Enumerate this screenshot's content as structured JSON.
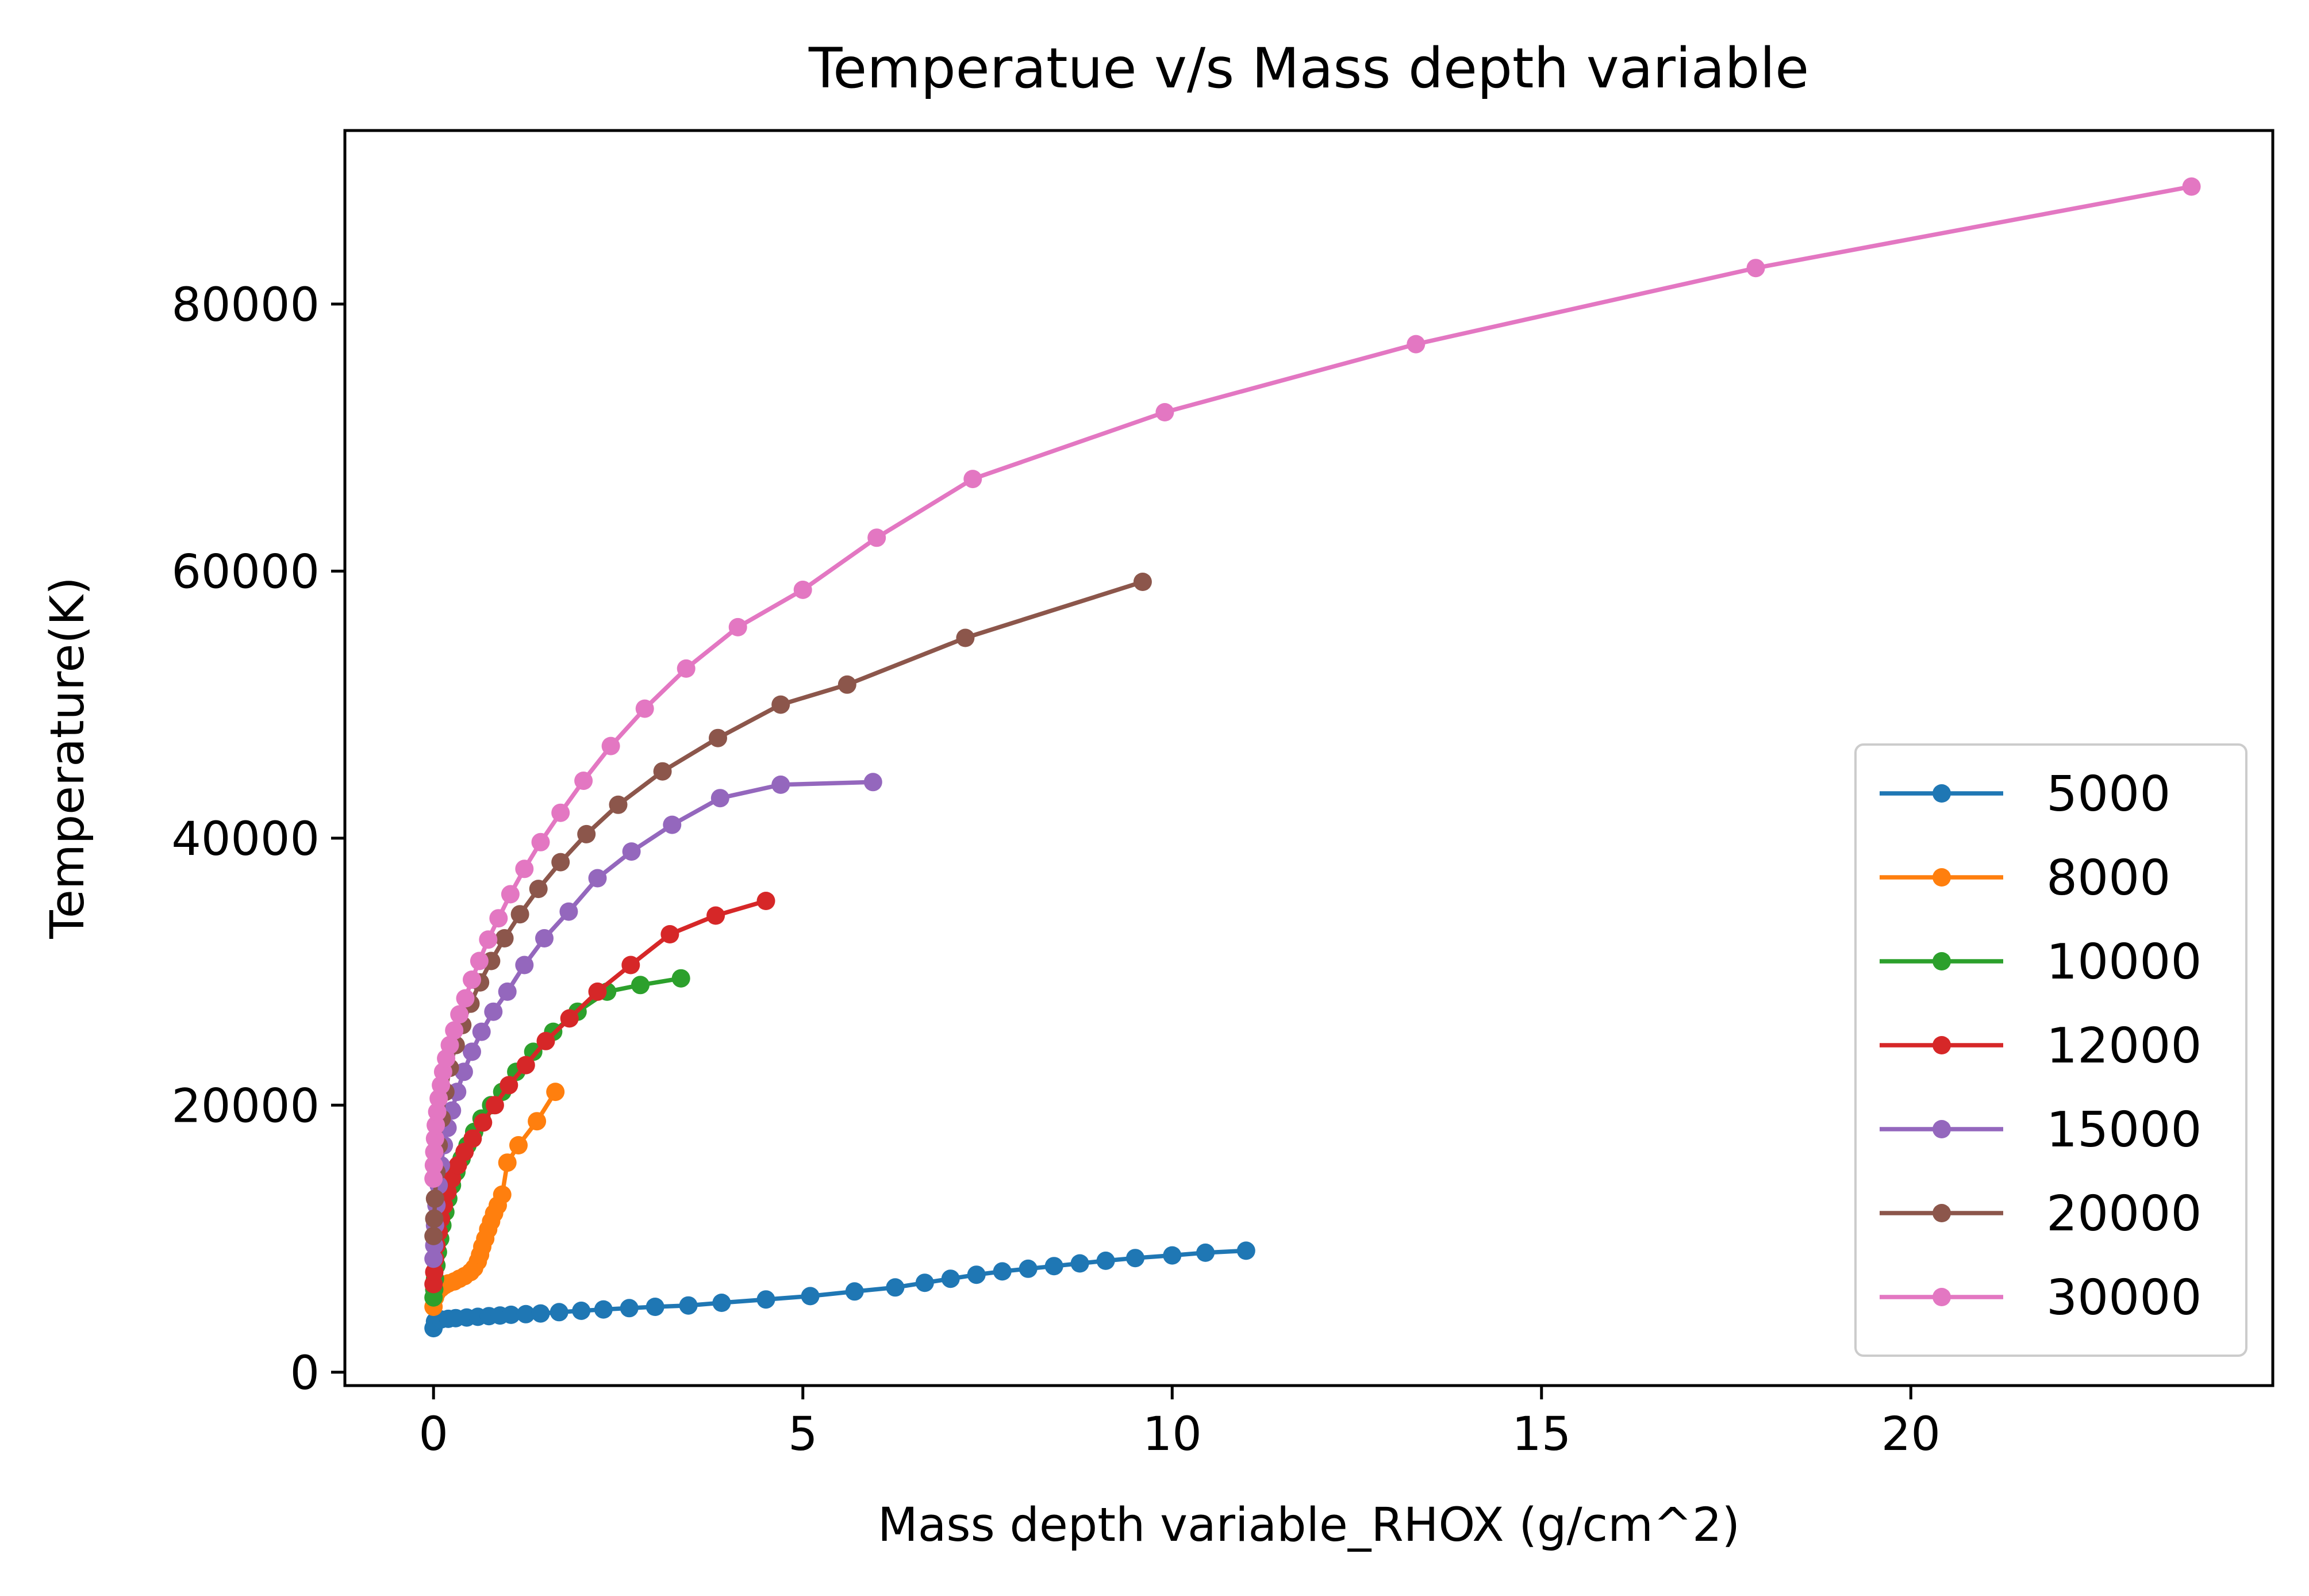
{
  "chart_data": {
    "type": "line",
    "title": "Temperatue v/s Mass depth variable",
    "xlabel": "Mass depth variable_RHOX (g/cm^2)",
    "ylabel": "Temperature(K)",
    "xlim": [
      -1.2,
      24.9
    ],
    "ylim": [
      -1000,
      93000
    ],
    "xticks": [
      0,
      5,
      10,
      15,
      20
    ],
    "yticks": [
      0,
      20000,
      40000,
      60000,
      80000
    ],
    "grid": false,
    "legend_position": "lower right",
    "series": [
      {
        "name": "5000",
        "color": "#1f77b4",
        "x": [
          0,
          0.02,
          0.05,
          0.1,
          0.2,
          0.3,
          0.45,
          0.6,
          0.75,
          0.9,
          1.05,
          1.25,
          1.45,
          1.7,
          2.0,
          2.3,
          2.65,
          3.0,
          3.45,
          3.9,
          4.5,
          5.1,
          5.7,
          6.25,
          6.65,
          7.0,
          7.35,
          7.7,
          8.05,
          8.4,
          8.75,
          9.1,
          9.5,
          10.0,
          10.45,
          11.0
        ],
        "y": [
          3300,
          3800,
          3900,
          3950,
          4000,
          4050,
          4100,
          4150,
          4200,
          4250,
          4300,
          4350,
          4400,
          4500,
          4600,
          4700,
          4800,
          4900,
          5000,
          5200,
          5450,
          5700,
          6050,
          6350,
          6700,
          7000,
          7300,
          7550,
          7750,
          7950,
          8150,
          8350,
          8550,
          8750,
          8950,
          9100
        ]
      },
      {
        "name": "8000",
        "color": "#ff7f0e",
        "x": [
          0,
          0.02,
          0.05,
          0.1,
          0.15,
          0.2,
          0.28,
          0.35,
          0.42,
          0.5,
          0.55,
          0.6,
          0.63,
          0.66,
          0.7,
          0.74,
          0.78,
          0.82,
          0.87,
          0.93,
          1.0,
          1.15,
          1.4,
          1.65
        ],
        "y": [
          4900,
          5600,
          6000,
          6300,
          6500,
          6650,
          6800,
          7000,
          7200,
          7500,
          7800,
          8300,
          8800,
          9400,
          10000,
          10700,
          11300,
          11900,
          12500,
          13300,
          15700,
          17000,
          18800,
          21000
        ]
      },
      {
        "name": "10000",
        "color": "#2ca02c",
        "x": [
          0,
          0.01,
          0.02,
          0.04,
          0.06,
          0.09,
          0.12,
          0.16,
          0.2,
          0.25,
          0.31,
          0.38,
          0.46,
          0.55,
          0.65,
          0.78,
          0.93,
          1.12,
          1.35,
          1.62,
          1.95,
          2.35,
          2.8,
          3.35
        ],
        "y": [
          5600,
          6200,
          7000,
          8000,
          9000,
          10000,
          11000,
          12000,
          13000,
          14000,
          15000,
          16000,
          17000,
          18000,
          19000,
          20000,
          21000,
          22500,
          24000,
          25500,
          27000,
          28500,
          29000,
          29500
        ]
      },
      {
        "name": "12000",
        "color": "#d62728",
        "x": [
          0,
          0.01,
          0.02,
          0.04,
          0.07,
          0.1,
          0.14,
          0.19,
          0.25,
          0.33,
          0.42,
          0.53,
          0.67,
          0.83,
          1.02,
          1.25,
          1.52,
          1.84,
          2.22,
          2.67,
          3.2,
          3.82,
          4.5
        ],
        "y": [
          6600,
          7500,
          8500,
          9500,
          10500,
          11500,
          12500,
          13500,
          14500,
          15500,
          16500,
          17500,
          18700,
          20000,
          21500,
          23000,
          24800,
          26500,
          28500,
          30500,
          32800,
          34200,
          35300
        ]
      },
      {
        "name": "15000",
        "color": "#9467bd",
        "x": [
          0,
          0.01,
          0.02,
          0.04,
          0.07,
          0.1,
          0.14,
          0.19,
          0.25,
          0.32,
          0.41,
          0.52,
          0.65,
          0.81,
          1.0,
          1.23,
          1.5,
          1.83,
          2.22,
          2.68,
          3.23,
          3.88,
          4.7,
          5.95
        ],
        "y": [
          8500,
          9500,
          11000,
          12500,
          14000,
          15500,
          17000,
          18300,
          19600,
          21000,
          22500,
          24000,
          25500,
          27000,
          28500,
          30500,
          32500,
          34500,
          37000,
          39000,
          41000,
          43000,
          44000,
          44200
        ]
      },
      {
        "name": "20000",
        "color": "#8c564b",
        "x": [
          0,
          0.01,
          0.02,
          0.04,
          0.07,
          0.11,
          0.16,
          0.22,
          0.3,
          0.39,
          0.5,
          0.63,
          0.78,
          0.96,
          1.17,
          1.42,
          1.72,
          2.07,
          2.5,
          3.1,
          3.85,
          4.7,
          5.6,
          7.2,
          9.6
        ],
        "y": [
          10200,
          11500,
          13000,
          15000,
          17000,
          19000,
          21000,
          22800,
          24500,
          26000,
          27600,
          29200,
          30800,
          32500,
          34300,
          36200,
          38200,
          40300,
          42500,
          45000,
          47500,
          50000,
          51500,
          55000,
          59200
        ]
      },
      {
        "name": "30000",
        "color": "#e377c2",
        "x": [
          0,
          0.005,
          0.01,
          0.02,
          0.03,
          0.05,
          0.07,
          0.1,
          0.13,
          0.17,
          0.22,
          0.28,
          0.35,
          0.43,
          0.52,
          0.62,
          0.74,
          0.88,
          1.04,
          1.23,
          1.45,
          1.72,
          2.03,
          2.4,
          2.86,
          3.42,
          4.12,
          5.0,
          6.0,
          7.3,
          9.9,
          13.3,
          17.9,
          23.8
        ],
        "y": [
          14500,
          15500,
          16500,
          17500,
          18500,
          19500,
          20500,
          21500,
          22500,
          23500,
          24500,
          25600,
          26800,
          28000,
          29400,
          30800,
          32400,
          34000,
          35800,
          37700,
          39700,
          41900,
          44300,
          46900,
          49700,
          52700,
          55800,
          58600,
          62500,
          66900,
          71900,
          77000,
          82700,
          88800
        ]
      }
    ]
  }
}
